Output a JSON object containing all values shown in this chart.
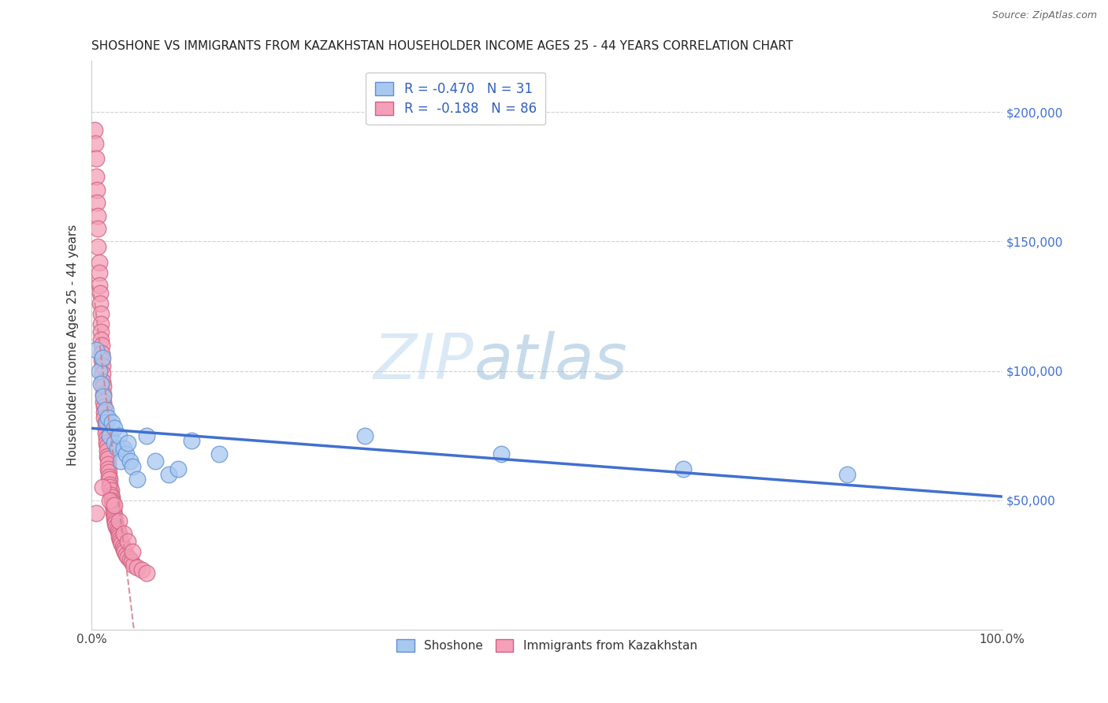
{
  "title": "SHOSHONE VS IMMIGRANTS FROM KAZAKHSTAN HOUSEHOLDER INCOME AGES 25 - 44 YEARS CORRELATION CHART",
  "source": "Source: ZipAtlas.com",
  "ylabel": "Householder Income Ages 25 - 44 years",
  "xlim": [
    0,
    1.0
  ],
  "ylim": [
    0,
    220000
  ],
  "watermark_zip": "ZIP",
  "watermark_atlas": "atlas",
  "shoshone_color": "#a8c8f0",
  "shoshone_edge": "#6090d0",
  "kazakhstan_color": "#f5a0b8",
  "kazakhstan_edge": "#d06080",
  "trend_blue": "#4070d0",
  "trend_pink": "#d08090",
  "shoshone_x": [
    0.005,
    0.008,
    0.01,
    0.012,
    0.013,
    0.015,
    0.016,
    0.018,
    0.02,
    0.022,
    0.025,
    0.025,
    0.028,
    0.03,
    0.032,
    0.035,
    0.038,
    0.04,
    0.042,
    0.045,
    0.05,
    0.06,
    0.07,
    0.085,
    0.095,
    0.11,
    0.14,
    0.3,
    0.45,
    0.65,
    0.83
  ],
  "shoshone_y": [
    108000,
    100000,
    95000,
    105000,
    90000,
    85000,
    80000,
    82000,
    75000,
    80000,
    78000,
    72000,
    70000,
    75000,
    65000,
    70000,
    68000,
    72000,
    65000,
    63000,
    58000,
    75000,
    65000,
    60000,
    62000,
    73000,
    68000,
    75000,
    68000,
    62000,
    60000
  ],
  "kazakhstan_x": [
    0.003,
    0.004,
    0.005,
    0.005,
    0.006,
    0.006,
    0.007,
    0.007,
    0.007,
    0.008,
    0.008,
    0.008,
    0.009,
    0.009,
    0.01,
    0.01,
    0.01,
    0.01,
    0.011,
    0.011,
    0.011,
    0.012,
    0.012,
    0.012,
    0.013,
    0.013,
    0.013,
    0.014,
    0.014,
    0.014,
    0.015,
    0.015,
    0.015,
    0.016,
    0.016,
    0.017,
    0.017,
    0.017,
    0.018,
    0.018,
    0.018,
    0.019,
    0.019,
    0.02,
    0.02,
    0.02,
    0.021,
    0.021,
    0.022,
    0.022,
    0.023,
    0.023,
    0.024,
    0.024,
    0.025,
    0.025,
    0.026,
    0.026,
    0.027,
    0.028,
    0.029,
    0.03,
    0.03,
    0.031,
    0.032,
    0.033,
    0.034,
    0.035,
    0.036,
    0.038,
    0.04,
    0.042,
    0.044,
    0.046,
    0.05,
    0.055,
    0.06,
    0.005,
    0.012,
    0.02,
    0.025,
    0.03,
    0.035,
    0.04,
    0.045
  ],
  "kazakhstan_y": [
    193000,
    188000,
    182000,
    175000,
    170000,
    165000,
    160000,
    155000,
    148000,
    142000,
    138000,
    133000,
    130000,
    126000,
    122000,
    118000,
    115000,
    112000,
    110000,
    107000,
    104000,
    102000,
    99000,
    96000,
    94000,
    91000,
    88000,
    86000,
    84000,
    82000,
    80000,
    78000,
    76000,
    74000,
    72000,
    71000,
    69000,
    67000,
    66000,
    64000,
    62000,
    61000,
    59000,
    58000,
    56000,
    55000,
    54000,
    52000,
    51000,
    50000,
    49000,
    48000,
    46000,
    45000,
    44000,
    43000,
    42000,
    41000,
    40000,
    39000,
    38000,
    37000,
    36000,
    35000,
    34000,
    33000,
    32000,
    31000,
    30000,
    29000,
    28000,
    27000,
    26000,
    25000,
    24000,
    23000,
    22000,
    45000,
    55000,
    50000,
    48000,
    42000,
    37000,
    34000,
    30000
  ]
}
